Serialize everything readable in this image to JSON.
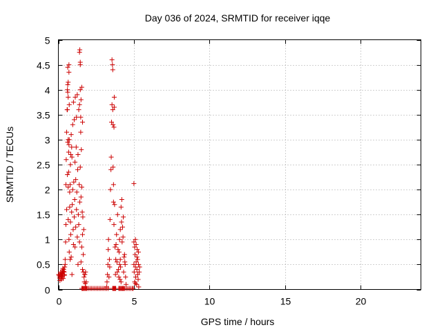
{
  "chart_data": {
    "type": "scatter",
    "title": "Day 036 of 2024, SRMTID for receiver iqqe",
    "xlabel": "GPS time / hours",
    "ylabel": "SRMTID / TECUs",
    "xlim": [
      0,
      24
    ],
    "ylim": [
      0,
      5
    ],
    "xticks": [
      0,
      5,
      10,
      15,
      20
    ],
    "xtick_labels": [
      "0",
      "5",
      "10",
      "15",
      "20"
    ],
    "yticks": [
      0,
      0.5,
      1,
      1.5,
      2,
      2.5,
      3,
      3.5,
      4,
      4.5,
      5
    ],
    "ytick_labels": [
      "0",
      "0.5",
      "1",
      "1.5",
      "2",
      "2.5",
      "3",
      "3.5",
      "4",
      "4.5",
      "5"
    ],
    "grid": true,
    "marker": "+",
    "colors": {
      "series": "#cc0000",
      "grid": "#a0a0a0",
      "axis": "#000000"
    },
    "series": [
      {
        "name": "SRMTID",
        "x": [
          0.02,
          0.05,
          0.08,
          0.1,
          0.12,
          0.15,
          0.18,
          0.2,
          0.22,
          0.25,
          0.28,
          0.3,
          0.32,
          0.35,
          0.38,
          0.4,
          0.42,
          0.45,
          0.1,
          0.2,
          0.3,
          0.4,
          0.25,
          0.35,
          0.45,
          0.48,
          0.5,
          0.5,
          0.52,
          0.55,
          0.55,
          0.58,
          0.6,
          0.6,
          0.62,
          0.62,
          0.65,
          0.65,
          0.65,
          0.68,
          0.68,
          0.7,
          0.7,
          0.72,
          0.72,
          0.75,
          0.75,
          0.78,
          0.78,
          0.8,
          0.8,
          0.82,
          0.82,
          0.85,
          0.85,
          0.88,
          0.88,
          0.9,
          0.9,
          0.92,
          0.95,
          0.95,
          0.98,
          1.0,
          1.0,
          1.02,
          1.05,
          1.05,
          1.08,
          1.1,
          1.1,
          1.12,
          1.15,
          1.15,
          1.18,
          1.2,
          1.2,
          1.22,
          1.25,
          1.25,
          1.28,
          1.3,
          1.3,
          1.32,
          1.35,
          1.35,
          1.38,
          1.4,
          1.4,
          1.42,
          1.45,
          1.45,
          1.48,
          1.5,
          1.5,
          1.52,
          1.55,
          1.55,
          1.58,
          1.6,
          1.6,
          1.62,
          1.65,
          1.65,
          1.68,
          1.7,
          1.72,
          1.75,
          1.78,
          1.8,
          1.4,
          1.42,
          1.45,
          1.45,
          1.48,
          1.5,
          1.55,
          1.6,
          0.6,
          0.62,
          0.62,
          0.65,
          0.65,
          0.7,
          0.7,
          0.72,
          1.55,
          1.6,
          1.65,
          1.7,
          1.75,
          1.8,
          1.85,
          1.9,
          2.0,
          2.1,
          2.2,
          2.3,
          2.4,
          2.5,
          2.6,
          2.7,
          2.8,
          2.9,
          3.0,
          3.1,
          3.2,
          3.3,
          1.75,
          1.8,
          1.85,
          3.2,
          3.22,
          3.25,
          3.28,
          3.3,
          3.32,
          3.35,
          3.38,
          3.4,
          3.42,
          3.45,
          3.48,
          3.5,
          3.52,
          3.55,
          3.55,
          3.58,
          3.6,
          3.6,
          3.62,
          3.62,
          3.65,
          3.65,
          3.68,
          3.68,
          3.7,
          3.7,
          3.72,
          3.75,
          3.78,
          3.8,
          3.82,
          3.85,
          3.88,
          3.9,
          3.92,
          3.95,
          3.98,
          4.0,
          4.02,
          4.05,
          4.05,
          4.08,
          4.1,
          4.1,
          4.12,
          4.15,
          4.15,
          4.18,
          4.2,
          4.22,
          4.25,
          4.28,
          4.3,
          4.32,
          4.35,
          4.38,
          4.4,
          4.42,
          4.45,
          4.48,
          3.6,
          3.6,
          3.62,
          3.62,
          3.65,
          3.68,
          3.7,
          3.72,
          3.75,
          3.75,
          3.78,
          3.8,
          4.0,
          4.05,
          4.1,
          4.15,
          4.2,
          4.25,
          4.3,
          4.35,
          4.4,
          4.5,
          4.6,
          4.7,
          4.8,
          4.9,
          4.95,
          5.0,
          5.0,
          5.02,
          5.05,
          5.05,
          5.08,
          5.1,
          5.1,
          5.12,
          5.15,
          5.15,
          5.18,
          5.2,
          5.2,
          5.22,
          5.25,
          5.25,
          5.28,
          5.3,
          5.3,
          5.32,
          5.35,
          5.38,
          5.0,
          5.1
        ],
        "y": [
          0.3,
          0.28,
          0.25,
          0.22,
          0.3,
          0.35,
          0.28,
          0.2,
          0.32,
          0.26,
          0.38,
          0.3,
          0.22,
          0.4,
          0.35,
          0.28,
          0.45,
          0.5,
          0.18,
          0.24,
          0.42,
          0.3,
          0.33,
          0.36,
          0.6,
          0.95,
          1.3,
          2.1,
          2.6,
          1.6,
          3.15,
          3.6,
          2.3,
          4.0,
          2.95,
          4.45,
          2.05,
          3.0,
          1.4,
          2.35,
          2.75,
          2.9,
          1.0,
          0.75,
          3.0,
          1.65,
          1.95,
          0.6,
          2.1,
          1.35,
          2.5,
          2.7,
          1.1,
          3.1,
          0.65,
          2.85,
          1.55,
          0.3,
          2.65,
          1.7,
          3.3,
          2.0,
          1.2,
          3.75,
          0.9,
          2.15,
          1.45,
          3.4,
          1.8,
          2.55,
          0.85,
          3.85,
          1.25,
          2.2,
          2.85,
          3.45,
          1.6,
          1.95,
          1.05,
          3.9,
          2.4,
          0.5,
          2.7,
          1.5,
          3.6,
          1.3,
          2.1,
          3.7,
          0.95,
          1.75,
          2.45,
          4.0,
          3.15,
          0.55,
          1.85,
          2.8,
          0.85,
          2.05,
          1.55,
          1.1,
          0.4,
          1.45,
          0.7,
          0.35,
          1.2,
          0.25,
          0.15,
          0.3,
          0.12,
          0.05,
          4.75,
          4.8,
          4.5,
          4.55,
          3.45,
          3.8,
          4.05,
          3.35,
          3.6,
          4.1,
          3.95,
          3.85,
          4.15,
          4.5,
          4.35,
          3.7,
          0.02,
          0.02,
          0.02,
          0.02,
          0.02,
          0.02,
          0.02,
          0.02,
          0.02,
          0.02,
          0.02,
          0.02,
          0.02,
          0.02,
          0.02,
          0.02,
          0.02,
          0.02,
          0.02,
          0.02,
          0.02,
          0.02,
          0.3,
          0.35,
          0.15,
          0.05,
          0.15,
          0.3,
          0.5,
          0.8,
          1.0,
          0.25,
          0.6,
          0.45,
          1.4,
          2.0,
          2.4,
          2.65,
          3.35,
          3.7,
          4.6,
          4.5,
          3.6,
          4.4,
          3.3,
          2.45,
          2.1,
          1.75,
          3.25,
          1.3,
          3.85,
          3.65,
          1.7,
          0.85,
          0.3,
          0.6,
          0.9,
          1.1,
          0.55,
          0.35,
          1.5,
          0.8,
          0.4,
          0.25,
          0.75,
          1.0,
          0.5,
          0.2,
          0.6,
          1.2,
          0.45,
          0.15,
          1.65,
          1.35,
          1.8,
          0.95,
          1.25,
          1.05,
          1.45,
          0.35,
          0.65,
          0.7,
          0.55,
          0.5,
          0.25,
          0.1,
          0.02,
          0.02,
          0.02,
          0.02,
          0.02,
          0.02,
          0.02,
          0.02,
          0.02,
          0.02,
          0.02,
          0.02,
          0.02,
          0.02,
          0.02,
          0.02,
          0.02,
          0.02,
          0.02,
          0.02,
          0.02,
          0.02,
          0.02,
          0.02,
          0.02,
          0.02,
          0.02,
          0.5,
          0.95,
          0.35,
          0.85,
          0.15,
          0.7,
          0.45,
          1.0,
          0.25,
          0.55,
          0.9,
          0.1,
          0.65,
          0.4,
          0.8,
          0.3,
          0.6,
          0.2,
          0.75,
          0.5,
          0.05,
          0.35,
          0.45,
          2.12,
          0.12
        ]
      }
    ]
  }
}
